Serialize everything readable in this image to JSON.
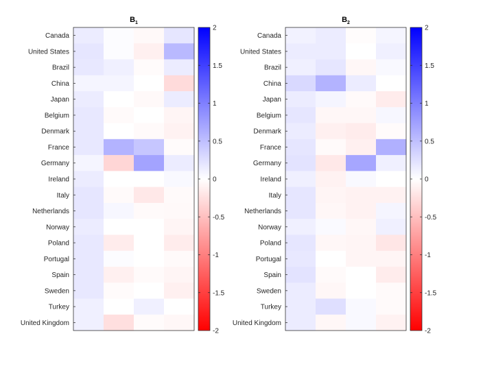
{
  "chart_data": [
    {
      "type": "heatmap",
      "title": "B",
      "title_subscript": "1",
      "columns": 4,
      "rows": [
        "Canada",
        "United States",
        "Brazil",
        "China",
        "Japan",
        "Belgium",
        "Denmark",
        "France",
        "Germany",
        "Ireland",
        "Italy",
        "Netherlands",
        "Norway",
        "Poland",
        "Portugal",
        "Spain",
        "Sweden",
        "Turkey",
        "United Kingdom"
      ],
      "values": [
        [
          0.15,
          0.02,
          -0.05,
          0.2
        ],
        [
          0.2,
          0.02,
          -0.12,
          0.55
        ],
        [
          0.18,
          0.12,
          -0.03,
          0.15
        ],
        [
          0.08,
          0.08,
          0.0,
          -0.28
        ],
        [
          0.15,
          0.0,
          -0.05,
          0.15
        ],
        [
          0.18,
          -0.04,
          0.0,
          -0.08
        ],
        [
          0.18,
          0.0,
          -0.04,
          -0.1
        ],
        [
          0.18,
          0.6,
          0.45,
          -0.03
        ],
        [
          0.08,
          -0.32,
          0.72,
          0.15
        ],
        [
          0.15,
          0.0,
          0.0,
          0.05
        ],
        [
          0.2,
          -0.04,
          -0.18,
          -0.04
        ],
        [
          0.2,
          0.06,
          -0.04,
          -0.05
        ],
        [
          0.15,
          0.0,
          0.0,
          -0.08
        ],
        [
          0.18,
          -0.15,
          0.0,
          -0.15
        ],
        [
          0.18,
          0.02,
          0.0,
          -0.04
        ],
        [
          0.18,
          -0.12,
          -0.04,
          -0.08
        ],
        [
          0.18,
          -0.03,
          0.0,
          -0.12
        ],
        [
          0.12,
          0.0,
          0.12,
          0.0
        ],
        [
          0.12,
          -0.25,
          -0.03,
          -0.06
        ]
      ],
      "colorbar": {
        "min": -2,
        "max": 2,
        "ticks": [
          "2",
          "1.5",
          "1",
          "0.5",
          "0",
          "-0.5",
          "-1",
          "-1.5",
          "-2"
        ]
      }
    },
    {
      "type": "heatmap",
      "title": "B",
      "title_subscript": "2",
      "columns": 4,
      "rows": [
        "Canada",
        "United States",
        "Brazil",
        "China",
        "Japan",
        "Belgium",
        "Denmark",
        "France",
        "Germany",
        "Ireland",
        "Italy",
        "Netherlands",
        "Norway",
        "Poland",
        "Portugal",
        "Spain",
        "Sweden",
        "Turkey",
        "United Kingdom"
      ],
      "values": [
        [
          0.1,
          0.15,
          -0.02,
          0.08
        ],
        [
          0.15,
          0.15,
          0.0,
          0.12
        ],
        [
          0.12,
          0.2,
          -0.06,
          0.05
        ],
        [
          0.3,
          0.6,
          0.15,
          0.0
        ],
        [
          0.15,
          0.08,
          -0.04,
          -0.15
        ],
        [
          0.2,
          -0.06,
          -0.06,
          0.06
        ],
        [
          0.15,
          -0.12,
          -0.15,
          -0.03
        ],
        [
          0.2,
          -0.04,
          -0.12,
          0.62
        ],
        [
          0.22,
          -0.18,
          0.7,
          0.12
        ],
        [
          0.12,
          -0.1,
          0.05,
          0.0
        ],
        [
          0.2,
          -0.08,
          -0.1,
          -0.1
        ],
        [
          0.2,
          -0.06,
          -0.1,
          0.08
        ],
        [
          0.12,
          0.04,
          -0.06,
          0.12
        ],
        [
          0.2,
          -0.06,
          -0.08,
          -0.2
        ],
        [
          0.18,
          0.0,
          -0.08,
          -0.08
        ],
        [
          0.22,
          -0.04,
          0.0,
          -0.15
        ],
        [
          0.15,
          -0.06,
          0.0,
          -0.04
        ],
        [
          0.15,
          0.25,
          0.05,
          -0.04
        ],
        [
          0.15,
          -0.06,
          0.05,
          -0.1
        ]
      ],
      "colorbar": {
        "min": -2,
        "max": 2,
        "ticks": [
          "2",
          "1.5",
          "1",
          "0.5",
          "0",
          "-0.5",
          "-1",
          "-1.5",
          "-2"
        ]
      }
    }
  ]
}
